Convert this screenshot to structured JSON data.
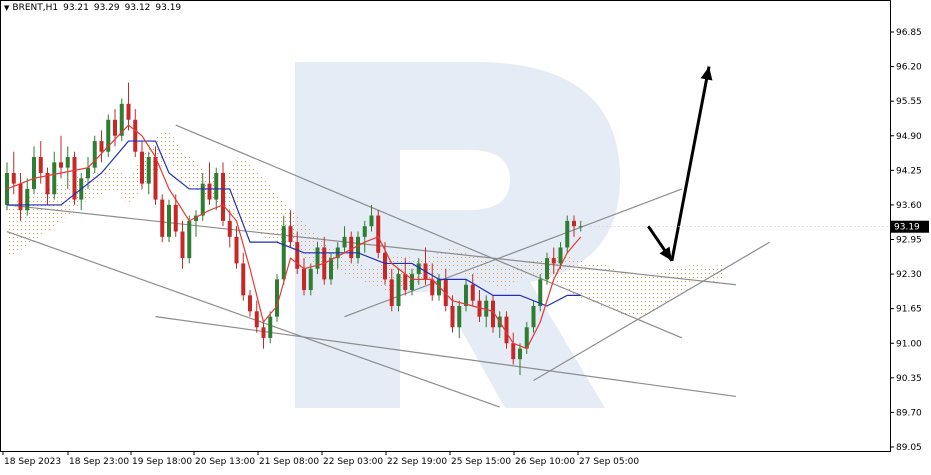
{
  "header": {
    "symbol": "BRENT,H1",
    "open": "93.21",
    "high": "93.29",
    "low": "93.12",
    "close": "93.19"
  },
  "chart_data": {
    "type": "candlestick",
    "ylim": [
      89.05,
      97.28
    ],
    "y_ticks": [
      "96.85",
      "96.20",
      "95.55",
      "94.90",
      "94.25",
      "93.60",
      "92.95",
      "92.30",
      "91.65",
      "91.00",
      "90.35",
      "89.70",
      "89.05"
    ],
    "x_ticks": [
      "18 Sep 2023",
      "18 Sep 23:00",
      "19 Sep 18:00",
      "20 Sep 13:00",
      "21 Sep 08:00",
      "22 Sep 03:00",
      "22 Sep 19:00",
      "25 Sep 15:00",
      "26 Sep 10:00",
      "27 Sep 05:00"
    ],
    "current_price": "93.19",
    "bull_color": "#2e7d32",
    "bear_color": "#c62828",
    "tenkan_color": "#e53935",
    "kijun_color": "#1e2fb5",
    "cloud_color": "#e0a060",
    "candles": [
      [
        93.6,
        94.4,
        93.5,
        94.2
      ],
      [
        94.2,
        94.6,
        93.8,
        94.0
      ],
      [
        94.0,
        94.2,
        93.3,
        93.5
      ],
      [
        93.5,
        94.1,
        93.4,
        93.9
      ],
      [
        93.9,
        94.7,
        93.8,
        94.5
      ],
      [
        94.5,
        94.8,
        94.0,
        94.2
      ],
      [
        94.2,
        94.3,
        93.6,
        93.8
      ],
      [
        93.8,
        94.6,
        93.7,
        94.4
      ],
      [
        94.4,
        94.9,
        94.1,
        94.3
      ],
      [
        94.3,
        94.7,
        93.9,
        94.5
      ],
      [
        94.5,
        94.6,
        93.6,
        93.7
      ],
      [
        93.7,
        94.2,
        93.5,
        94.1
      ],
      [
        94.1,
        94.5,
        93.9,
        94.3
      ],
      [
        94.3,
        94.9,
        94.2,
        94.8
      ],
      [
        94.8,
        95.0,
        94.4,
        94.6
      ],
      [
        94.6,
        95.3,
        94.5,
        95.2
      ],
      [
        95.2,
        95.4,
        94.7,
        94.9
      ],
      [
        94.9,
        95.6,
        94.8,
        95.5
      ],
      [
        95.5,
        95.9,
        95.0,
        95.2
      ],
      [
        95.2,
        95.4,
        94.5,
        94.6
      ],
      [
        94.6,
        94.8,
        93.9,
        94.0
      ],
      [
        94.0,
        94.6,
        93.8,
        94.5
      ],
      [
        94.5,
        94.7,
        93.6,
        93.7
      ],
      [
        93.7,
        93.8,
        92.9,
        93.0
      ],
      [
        93.0,
        93.7,
        92.9,
        93.6
      ],
      [
        93.6,
        93.8,
        93.0,
        93.1
      ],
      [
        93.1,
        93.3,
        92.4,
        92.6
      ],
      [
        92.6,
        93.4,
        92.5,
        93.3
      ],
      [
        93.3,
        93.5,
        93.0,
        93.4
      ],
      [
        93.4,
        94.2,
        93.3,
        94.0
      ],
      [
        94.0,
        94.4,
        93.6,
        93.7
      ],
      [
        93.7,
        94.3,
        93.5,
        94.2
      ],
      [
        94.2,
        94.4,
        93.2,
        93.3
      ],
      [
        93.3,
        93.5,
        92.8,
        93.0
      ],
      [
        93.0,
        93.2,
        92.4,
        92.5
      ],
      [
        92.5,
        92.7,
        91.8,
        91.9
      ],
      [
        91.9,
        92.0,
        91.5,
        91.6
      ],
      [
        91.6,
        91.8,
        91.2,
        91.3
      ],
      [
        91.3,
        91.4,
        90.9,
        91.1
      ],
      [
        91.1,
        91.6,
        91.0,
        91.5
      ],
      [
        91.5,
        92.3,
        91.4,
        92.2
      ],
      [
        92.2,
        93.4,
        92.1,
        93.2
      ],
      [
        93.2,
        93.5,
        92.8,
        92.9
      ],
      [
        92.9,
        93.1,
        92.3,
        92.4
      ],
      [
        92.4,
        92.6,
        91.9,
        92.0
      ],
      [
        92.0,
        92.5,
        91.9,
        92.4
      ],
      [
        92.4,
        92.9,
        92.3,
        92.8
      ],
      [
        92.8,
        93.0,
        92.1,
        92.2
      ],
      [
        92.2,
        92.7,
        92.1,
        92.6
      ],
      [
        92.6,
        92.9,
        92.4,
        92.8
      ],
      [
        92.8,
        93.2,
        92.7,
        93.0
      ],
      [
        93.0,
        93.1,
        92.5,
        92.6
      ],
      [
        92.6,
        93.1,
        92.5,
        93.0
      ],
      [
        93.0,
        93.3,
        92.7,
        93.2
      ],
      [
        93.2,
        93.6,
        93.1,
        93.4
      ],
      [
        93.4,
        93.5,
        92.6,
        92.7
      ],
      [
        92.7,
        92.9,
        92.1,
        92.2
      ],
      [
        92.2,
        92.4,
        91.6,
        91.7
      ],
      [
        91.7,
        92.4,
        91.6,
        92.3
      ],
      [
        92.3,
        92.6,
        91.9,
        92.0
      ],
      [
        92.0,
        92.4,
        91.9,
        92.3
      ],
      [
        92.3,
        92.6,
        92.1,
        92.5
      ],
      [
        92.5,
        92.8,
        92.1,
        92.2
      ],
      [
        92.2,
        92.5,
        91.8,
        91.9
      ],
      [
        91.9,
        92.3,
        91.8,
        92.2
      ],
      [
        92.2,
        92.4,
        91.6,
        91.7
      ],
      [
        91.7,
        91.9,
        91.2,
        91.3
      ],
      [
        91.3,
        91.8,
        91.1,
        91.7
      ],
      [
        91.7,
        92.2,
        91.6,
        92.1
      ],
      [
        92.1,
        92.3,
        91.7,
        91.8
      ],
      [
        91.8,
        92.0,
        91.4,
        91.5
      ],
      [
        91.5,
        91.9,
        91.3,
        91.8
      ],
      [
        91.8,
        91.9,
        91.2,
        91.3
      ],
      [
        91.3,
        91.6,
        91.1,
        91.5
      ],
      [
        91.5,
        91.6,
        90.9,
        91.0
      ],
      [
        91.0,
        91.2,
        90.6,
        90.7
      ],
      [
        90.7,
        91.0,
        90.4,
        90.9
      ],
      [
        90.9,
        91.4,
        90.8,
        91.3
      ],
      [
        91.3,
        91.8,
        91.2,
        91.7
      ],
      [
        91.7,
        92.3,
        91.6,
        92.2
      ],
      [
        92.2,
        92.7,
        92.1,
        92.6
      ],
      [
        92.6,
        92.8,
        92.3,
        92.5
      ],
      [
        92.5,
        92.9,
        92.4,
        92.8
      ],
      [
        92.8,
        93.4,
        92.7,
        93.3
      ],
      [
        93.3,
        93.4,
        93.0,
        93.2
      ],
      [
        93.2,
        93.3,
        93.1,
        93.2
      ]
    ],
    "tenkan": [
      [
        0,
        93.9
      ],
      [
        4,
        94.1
      ],
      [
        8,
        94.2
      ],
      [
        12,
        94.3
      ],
      [
        15,
        94.7
      ],
      [
        18,
        95.1
      ],
      [
        20,
        94.9
      ],
      [
        22,
        94.5
      ],
      [
        24,
        93.9
      ],
      [
        27,
        93.3
      ],
      [
        30,
        93.5
      ],
      [
        32,
        93.6
      ],
      [
        34,
        93.3
      ],
      [
        36,
        92.4
      ],
      [
        38,
        91.4
      ],
      [
        40,
        91.7
      ],
      [
        42,
        92.6
      ],
      [
        44,
        92.4
      ],
      [
        47,
        92.5
      ],
      [
        50,
        92.7
      ],
      [
        53,
        92.9
      ],
      [
        55,
        93.0
      ],
      [
        57,
        92.5
      ],
      [
        60,
        92.2
      ],
      [
        63,
        92.2
      ],
      [
        66,
        91.8
      ],
      [
        69,
        91.7
      ],
      [
        72,
        91.6
      ],
      [
        75,
        91.0
      ],
      [
        77,
        90.9
      ],
      [
        79,
        91.4
      ],
      [
        81,
        92.2
      ],
      [
        83,
        92.7
      ],
      [
        85,
        93.0
      ]
    ],
    "kijun": [
      [
        0,
        93.6
      ],
      [
        8,
        93.6
      ],
      [
        14,
        94.2
      ],
      [
        18,
        94.8
      ],
      [
        22,
        94.8
      ],
      [
        24,
        94.2
      ],
      [
        27,
        93.9
      ],
      [
        30,
        93.9
      ],
      [
        33,
        93.9
      ],
      [
        36,
        92.9
      ],
      [
        40,
        92.9
      ],
      [
        44,
        92.7
      ],
      [
        48,
        92.7
      ],
      [
        52,
        92.7
      ],
      [
        56,
        92.5
      ],
      [
        60,
        92.5
      ],
      [
        64,
        92.2
      ],
      [
        68,
        92.2
      ],
      [
        72,
        91.9
      ],
      [
        76,
        91.9
      ],
      [
        80,
        91.7
      ],
      [
        83,
        91.9
      ],
      [
        85,
        91.9
      ]
    ],
    "cloud": [
      [
        0,
        92.6,
        93.6
      ],
      [
        4,
        92.9,
        93.8
      ],
      [
        8,
        93.3,
        94.0
      ],
      [
        12,
        93.7,
        94.2
      ],
      [
        16,
        93.9,
        94.3
      ],
      [
        18,
        93.6,
        94.1
      ],
      [
        20,
        93.9,
        94.5
      ],
      [
        22,
        94.2,
        94.9
      ],
      [
        24,
        94.5,
        95.0
      ],
      [
        26,
        94.0,
        94.6
      ],
      [
        28,
        93.9,
        94.4
      ],
      [
        30,
        93.7,
        94.2
      ],
      [
        32,
        93.6,
        94.0
      ],
      [
        34,
        93.3,
        94.5
      ],
      [
        36,
        93.2,
        94.4
      ],
      [
        38,
        93.0,
        94.1
      ],
      [
        40,
        92.9,
        93.8
      ],
      [
        42,
        92.8,
        93.5
      ],
      [
        44,
        92.6,
        93.3
      ],
      [
        46,
        92.5,
        93.0
      ],
      [
        48,
        92.4,
        92.8
      ],
      [
        50,
        92.3,
        92.6
      ],
      [
        52,
        92.2,
        92.5
      ],
      [
        54,
        92.1,
        92.4
      ],
      [
        56,
        92.0,
        92.5
      ],
      [
        58,
        92.0,
        92.7
      ],
      [
        60,
        92.1,
        92.6
      ],
      [
        62,
        92.2,
        92.6
      ],
      [
        64,
        92.3,
        92.7
      ],
      [
        66,
        92.4,
        92.8
      ],
      [
        68,
        92.3,
        92.7
      ],
      [
        70,
        92.2,
        92.6
      ],
      [
        72,
        92.1,
        92.5
      ],
      [
        74,
        92.0,
        92.4
      ],
      [
        76,
        92.2,
        92.5
      ],
      [
        78,
        92.3,
        92.6
      ],
      [
        80,
        92.2,
        92.6
      ],
      [
        82,
        92.1,
        92.7
      ],
      [
        84,
        91.9,
        92.6
      ],
      [
        86,
        91.8,
        92.5
      ],
      [
        88,
        91.7,
        92.5
      ],
      [
        90,
        91.6,
        92.4
      ],
      [
        92,
        91.5,
        92.3
      ],
      [
        94,
        91.5,
        92.3
      ],
      [
        96,
        91.6,
        92.3
      ],
      [
        98,
        91.8,
        92.4
      ],
      [
        100,
        92.0,
        92.4
      ],
      [
        102,
        92.2,
        92.5
      ],
      [
        104,
        92.1,
        92.4
      ],
      [
        106,
        92.2,
        92.5
      ]
    ],
    "trendlines": [
      [
        [
          0,
          93.1
        ],
        [
          73,
          89.8
        ]
      ],
      [
        [
          25,
          95.1
        ],
        [
          100,
          91.1
        ]
      ],
      [
        [
          0,
          93.6
        ],
        [
          108,
          92.1
        ]
      ],
      [
        [
          22,
          91.5
        ],
        [
          108,
          90.0
        ]
      ],
      [
        [
          50,
          91.5
        ],
        [
          100,
          93.9
        ]
      ],
      [
        [
          78,
          90.3
        ],
        [
          113,
          92.9
        ]
      ]
    ],
    "arrows": [
      [
        [
          95,
          93.2
        ],
        [
          98.5,
          92.55
        ]
      ],
      [
        [
          98.5,
          92.55
        ],
        [
          104,
          96.2
        ]
      ]
    ]
  }
}
